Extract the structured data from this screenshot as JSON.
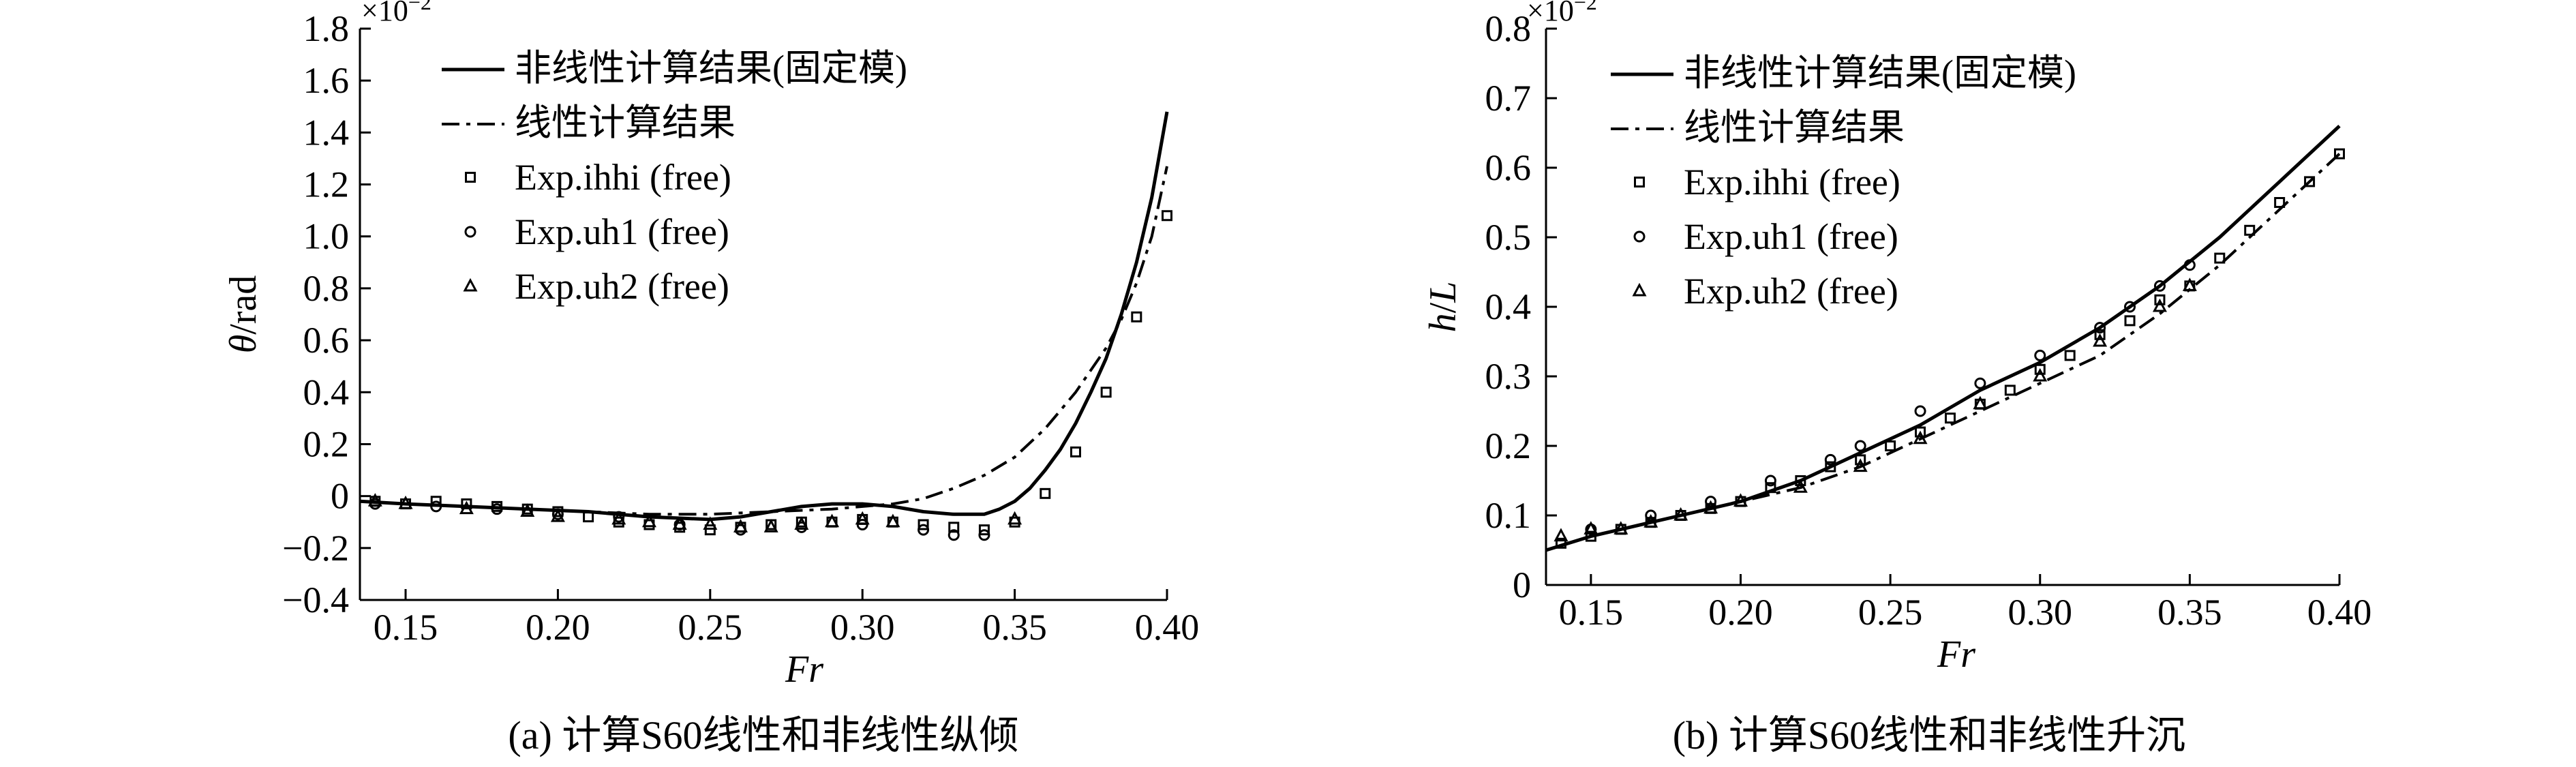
{
  "chart_data": [
    {
      "type": "line",
      "panel": "a",
      "caption": "(a) 计算S60线性和非线性纵倾",
      "xlabel": "Fr",
      "ylabel": "θ/rad",
      "ylabel_var": "θ",
      "ylabel_unit": "/rad",
      "multiplier_base": "×10",
      "multiplier_exp": "−2",
      "xlim": [
        0.135,
        0.4
      ],
      "ylim": [
        -0.4,
        1.8
      ],
      "x_ticks": [
        0.15,
        0.2,
        0.25,
        0.3,
        0.35,
        0.4
      ],
      "x_tick_labels": [
        "0.15",
        "0.20",
        "0.25",
        "0.30",
        "0.35",
        "0.40"
      ],
      "y_ticks": [
        -0.4,
        -0.2,
        0,
        0.2,
        0.4,
        0.6,
        0.8,
        1.0,
        1.2,
        1.4,
        1.6,
        1.8
      ],
      "y_tick_labels": [
        "−0.4",
        "−0.2",
        "0",
        "0.2",
        "0.4",
        "0.6",
        "0.8",
        "1.0",
        "1.2",
        "1.4",
        "1.6",
        "1.8"
      ],
      "legend": [
        "非线性计算结果(固定模)",
        "线性计算结果",
        "Exp.ihhi (free)",
        "Exp.uh1 (free)",
        "Exp.uh2 (free)"
      ],
      "series": [
        {
          "name": "非线性计算结果(固定模)",
          "style": "solid",
          "x": [
            0.135,
            0.15,
            0.17,
            0.19,
            0.21,
            0.23,
            0.25,
            0.26,
            0.27,
            0.28,
            0.29,
            0.3,
            0.31,
            0.32,
            0.33,
            0.34,
            0.345,
            0.35,
            0.355,
            0.36,
            0.365,
            0.37,
            0.375,
            0.38,
            0.385,
            0.39,
            0.395,
            0.4
          ],
          "y": [
            -0.02,
            -0.03,
            -0.04,
            -0.05,
            -0.06,
            -0.08,
            -0.09,
            -0.08,
            -0.06,
            -0.04,
            -0.03,
            -0.03,
            -0.04,
            -0.06,
            -0.07,
            -0.07,
            -0.05,
            -0.02,
            0.03,
            0.1,
            0.18,
            0.28,
            0.4,
            0.53,
            0.7,
            0.9,
            1.15,
            1.48
          ]
        },
        {
          "name": "线性计算结果",
          "style": "dashdot",
          "x": [
            0.135,
            0.15,
            0.17,
            0.19,
            0.21,
            0.23,
            0.25,
            0.27,
            0.29,
            0.3,
            0.31,
            0.32,
            0.33,
            0.34,
            0.35,
            0.36,
            0.37,
            0.38,
            0.385,
            0.39,
            0.395,
            0.4
          ],
          "y": [
            -0.02,
            -0.03,
            -0.04,
            -0.05,
            -0.06,
            -0.07,
            -0.07,
            -0.06,
            -0.05,
            -0.04,
            -0.03,
            -0.01,
            0.03,
            0.08,
            0.15,
            0.26,
            0.4,
            0.57,
            0.68,
            0.82,
            1.0,
            1.27
          ]
        },
        {
          "name": "Exp.ihhi (free)",
          "marker": "square",
          "x": [
            0.14,
            0.15,
            0.16,
            0.17,
            0.18,
            0.19,
            0.2,
            0.21,
            0.22,
            0.23,
            0.24,
            0.25,
            0.26,
            0.27,
            0.28,
            0.29,
            0.3,
            0.31,
            0.32,
            0.33,
            0.34,
            0.35,
            0.36,
            0.37,
            0.38,
            0.39,
            0.4
          ],
          "y": [
            -0.02,
            -0.03,
            -0.02,
            -0.03,
            -0.04,
            -0.05,
            -0.06,
            -0.08,
            -0.1,
            -0.11,
            -0.12,
            -0.13,
            -0.12,
            -0.11,
            -0.1,
            -0.1,
            -0.09,
            -0.1,
            -0.11,
            -0.12,
            -0.13,
            -0.1,
            0.01,
            0.17,
            0.4,
            0.69,
            1.08
          ]
        },
        {
          "name": "Exp.uh1 (free)",
          "marker": "circle",
          "x": [
            0.14,
            0.16,
            0.18,
            0.2,
            0.22,
            0.24,
            0.26,
            0.28,
            0.3,
            0.32,
            0.33,
            0.34
          ],
          "y": [
            -0.03,
            -0.04,
            -0.05,
            -0.07,
            -0.08,
            -0.11,
            -0.13,
            -0.12,
            -0.11,
            -0.13,
            -0.15,
            -0.15
          ]
        },
        {
          "name": "Exp.uh2 (free)",
          "marker": "triangle",
          "x": [
            0.14,
            0.15,
            0.17,
            0.19,
            0.2,
            0.22,
            0.23,
            0.24,
            0.25,
            0.26,
            0.27,
            0.28,
            0.29,
            0.3,
            0.31,
            0.35
          ],
          "y": [
            -0.02,
            -0.03,
            -0.05,
            -0.06,
            -0.08,
            -0.09,
            -0.1,
            -0.11,
            -0.11,
            -0.12,
            -0.12,
            -0.11,
            -0.1,
            -0.09,
            -0.1,
            -0.09
          ]
        }
      ]
    },
    {
      "type": "line",
      "panel": "b",
      "caption": "(b) 计算S60线性和非线性升沉",
      "xlabel": "Fr",
      "ylabel": "h/L",
      "ylabel_var": "h",
      "ylabel_sep": "/",
      "ylabel_den": "L",
      "multiplier_base": "×10",
      "multiplier_exp": "−2",
      "xlim": [
        0.135,
        0.4
      ],
      "ylim": [
        0,
        0.8
      ],
      "x_ticks": [
        0.15,
        0.2,
        0.25,
        0.3,
        0.35,
        0.4
      ],
      "x_tick_labels": [
        "0.15",
        "0.20",
        "0.25",
        "0.30",
        "0.35",
        "0.40"
      ],
      "y_ticks": [
        0,
        0.1,
        0.2,
        0.3,
        0.4,
        0.5,
        0.6,
        0.7,
        0.8
      ],
      "y_tick_labels": [
        "0",
        "0.1",
        "0.2",
        "0.3",
        "0.4",
        "0.5",
        "0.6",
        "0.7",
        "0.8"
      ],
      "legend": [
        "非线性计算结果(固定模)",
        "线性计算结果",
        "Exp.ihhi (free)",
        "Exp.uh1 (free)",
        "Exp.uh2 (free)"
      ],
      "series": [
        {
          "name": "非线性计算结果(固定模)",
          "style": "solid",
          "x": [
            0.135,
            0.15,
            0.16,
            0.18,
            0.2,
            0.22,
            0.24,
            0.26,
            0.28,
            0.3,
            0.32,
            0.34,
            0.36,
            0.38,
            0.4
          ],
          "y": [
            0.05,
            0.07,
            0.08,
            0.1,
            0.12,
            0.15,
            0.19,
            0.23,
            0.28,
            0.32,
            0.37,
            0.43,
            0.5,
            0.58,
            0.66
          ]
        },
        {
          "name": "线性计算结果",
          "style": "dashdot",
          "x": [
            0.135,
            0.15,
            0.16,
            0.18,
            0.2,
            0.22,
            0.24,
            0.26,
            0.28,
            0.3,
            0.32,
            0.34,
            0.36,
            0.38,
            0.4
          ],
          "y": [
            0.05,
            0.07,
            0.08,
            0.1,
            0.12,
            0.14,
            0.17,
            0.21,
            0.25,
            0.29,
            0.33,
            0.39,
            0.46,
            0.54,
            0.62
          ]
        },
        {
          "name": "Exp.ihhi (free)",
          "marker": "square",
          "x": [
            0.14,
            0.15,
            0.16,
            0.17,
            0.18,
            0.19,
            0.2,
            0.21,
            0.22,
            0.23,
            0.24,
            0.25,
            0.26,
            0.27,
            0.28,
            0.29,
            0.3,
            0.31,
            0.32,
            0.33,
            0.34,
            0.35,
            0.36,
            0.37,
            0.38,
            0.39,
            0.4
          ],
          "y": [
            0.06,
            0.07,
            0.08,
            0.09,
            0.1,
            0.11,
            0.12,
            0.14,
            0.15,
            0.17,
            0.18,
            0.2,
            0.22,
            0.24,
            0.26,
            0.28,
            0.31,
            0.33,
            0.36,
            0.38,
            0.41,
            0.43,
            0.47,
            0.51,
            0.55,
            0.58,
            0.62
          ]
        },
        {
          "name": "Exp.uh1 (free)",
          "marker": "circle",
          "x": [
            0.15,
            0.17,
            0.19,
            0.21,
            0.23,
            0.24,
            0.26,
            0.28,
            0.3,
            0.32,
            0.33,
            0.34,
            0.35
          ],
          "y": [
            0.08,
            0.1,
            0.12,
            0.15,
            0.18,
            0.2,
            0.25,
            0.29,
            0.33,
            0.37,
            0.4,
            0.43,
            0.46
          ]
        },
        {
          "name": "Exp.uh2 (free)",
          "marker": "triangle",
          "x": [
            0.14,
            0.15,
            0.16,
            0.17,
            0.18,
            0.19,
            0.2,
            0.22,
            0.24,
            0.26,
            0.28,
            0.3,
            0.32,
            0.34,
            0.35
          ],
          "y": [
            0.07,
            0.08,
            0.08,
            0.09,
            0.1,
            0.11,
            0.12,
            0.14,
            0.17,
            0.21,
            0.26,
            0.3,
            0.35,
            0.4,
            0.43
          ]
        }
      ]
    }
  ]
}
